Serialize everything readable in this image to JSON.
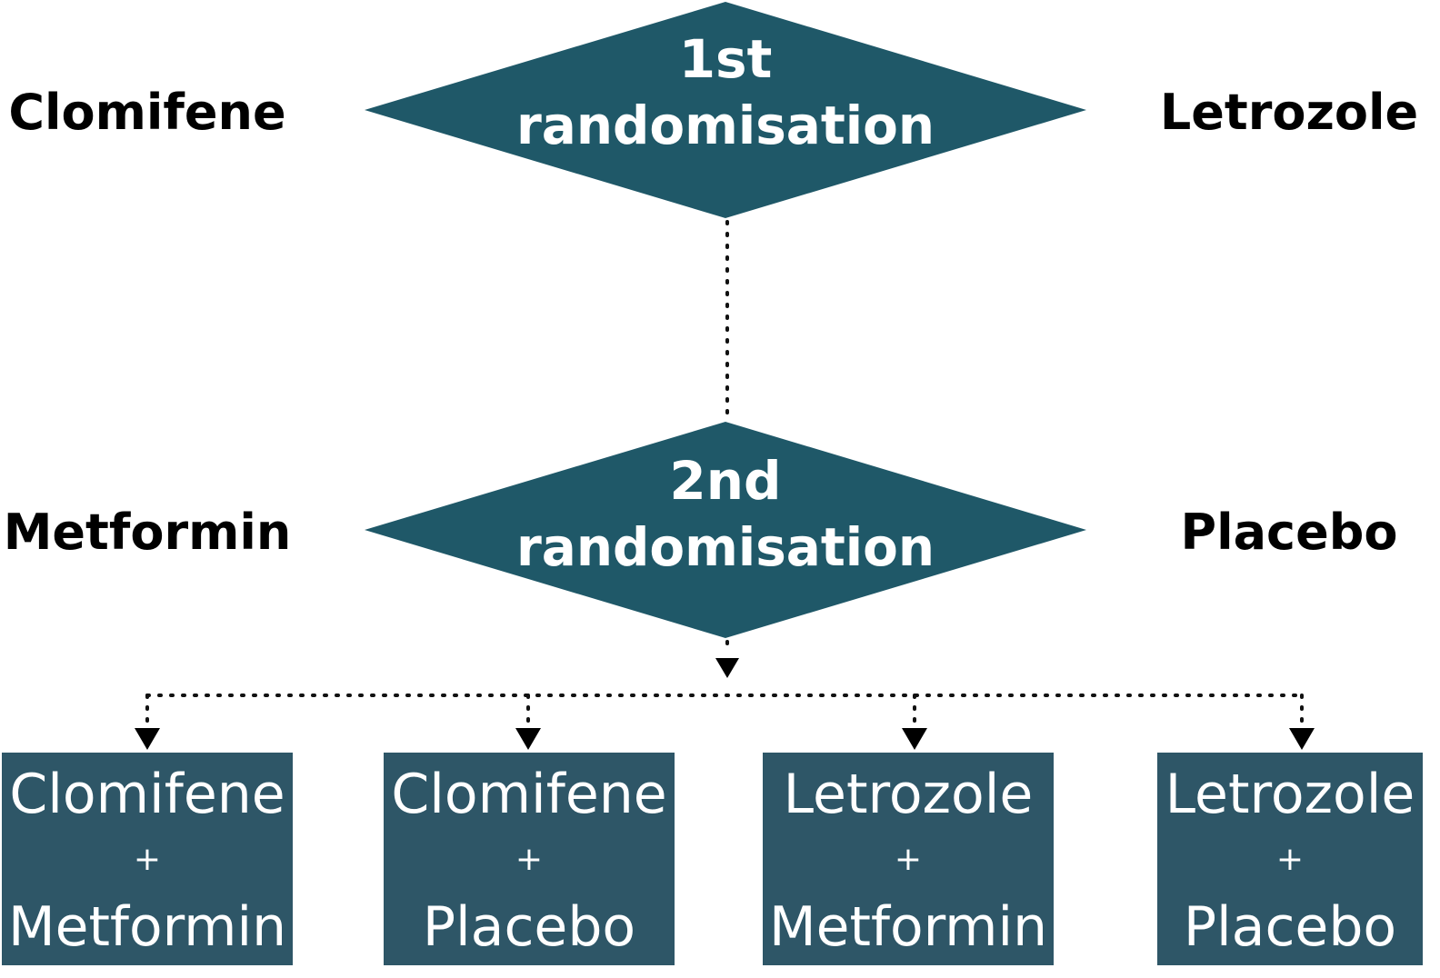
{
  "colors": {
    "diamond_fill": "#1f5868",
    "box_fill": "#2e5667",
    "diamond_text": "#ffffff",
    "box_text": "#ffffff",
    "label_text": "#000000",
    "connector": "#111111"
  },
  "randomisation_1": {
    "line1": "1st",
    "line2": "randomisation",
    "left_option": "Clomifene",
    "right_option": "Letrozole"
  },
  "randomisation_2": {
    "line1": "2nd",
    "line2": "randomisation",
    "left_option": "Metformin",
    "right_option": "Placebo"
  },
  "arms": [
    {
      "top": "Clomifene",
      "plus": "+",
      "bottom": "Metformin"
    },
    {
      "top": "Clomifene",
      "plus": "+",
      "bottom": "Placebo"
    },
    {
      "top": "Letrozole",
      "plus": "+",
      "bottom": "Metformin"
    },
    {
      "top": "Letrozole",
      "plus": "+",
      "bottom": "Placebo"
    }
  ]
}
